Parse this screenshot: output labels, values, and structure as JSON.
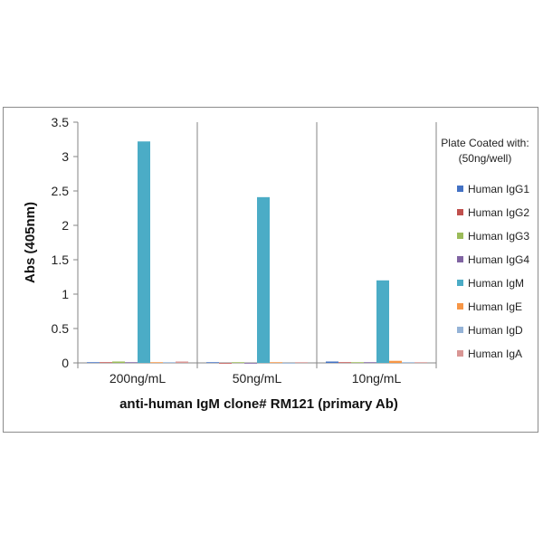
{
  "chart_data": {
    "type": "bar",
    "categories": [
      "200ng/mL",
      "50ng/mL",
      "10ng/mL"
    ],
    "xlabel": "anti-human IgM clone# RM121 (primary Ab)",
    "ylabel": "Abs (405nm)",
    "ylim": [
      0,
      3.5
    ],
    "yticks": [
      "0",
      "0.5",
      "1",
      "1.5",
      "2",
      "2.5",
      "3",
      "3.5"
    ],
    "grid": false,
    "legend": {
      "title_lines": [
        "Plate Coated with:",
        "(50ng/well)"
      ],
      "placement": "right"
    },
    "series": [
      {
        "name": "Human IgG1",
        "color": "#4472c4",
        "values": [
          0.01,
          0.01,
          0.02
        ]
      },
      {
        "name": "Human IgG2",
        "color": "#c0504d",
        "values": [
          0.01,
          0.0,
          0.01
        ]
      },
      {
        "name": "Human IgG3",
        "color": "#9bbb59",
        "values": [
          0.02,
          0.01,
          0.01
        ]
      },
      {
        "name": "Human IgG4",
        "color": "#8064a2",
        "values": [
          0.01,
          0.0,
          0.01
        ]
      },
      {
        "name": "Human IgM",
        "color": "#4bacc6",
        "values": [
          3.22,
          2.41,
          1.2
        ]
      },
      {
        "name": "Human IgE",
        "color": "#f79646",
        "values": [
          0.01,
          0.01,
          0.03
        ]
      },
      {
        "name": "Human IgD",
        "color": "#95b3d7",
        "values": [
          0.01,
          0.0,
          0.01
        ]
      },
      {
        "name": "Human IgA",
        "color": "#d99694",
        "values": [
          0.02,
          0.01,
          0.01
        ]
      }
    ]
  }
}
